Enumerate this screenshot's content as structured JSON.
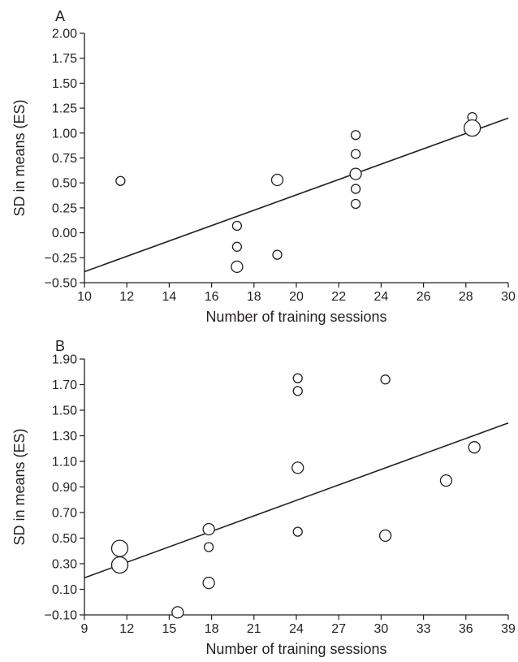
{
  "chart_data": [
    {
      "type": "scatter",
      "panel_label": "A",
      "xlabel": "Number of training sessions",
      "ylabel": "SD in means (ES)",
      "xlim": [
        10,
        30
      ],
      "ylim": [
        -0.5,
        2.0
      ],
      "xticks": [
        "10",
        "12",
        "14",
        "16",
        "18",
        "20",
        "22",
        "24",
        "26",
        "28",
        "30"
      ],
      "yticks": [
        "−0.50",
        "−0.25",
        "0.00",
        "0.25",
        "0.50",
        "0.75",
        "1.00",
        "1.25",
        "1.50",
        "1.75",
        "2.00"
      ],
      "points": [
        {
          "x": 11.7,
          "y": 0.52,
          "size": "small"
        },
        {
          "x": 17.2,
          "y": 0.07,
          "size": "small"
        },
        {
          "x": 17.2,
          "y": -0.14,
          "size": "small"
        },
        {
          "x": 17.2,
          "y": -0.34,
          "size": "medium"
        },
        {
          "x": 19.1,
          "y": 0.53,
          "size": "medium"
        },
        {
          "x": 19.1,
          "y": -0.22,
          "size": "small"
        },
        {
          "x": 22.8,
          "y": 0.98,
          "size": "small"
        },
        {
          "x": 22.8,
          "y": 0.79,
          "size": "small"
        },
        {
          "x": 22.8,
          "y": 0.59,
          "size": "medium"
        },
        {
          "x": 22.8,
          "y": 0.44,
          "size": "small"
        },
        {
          "x": 22.8,
          "y": 0.29,
          "size": "small"
        },
        {
          "x": 28.3,
          "y": 1.16,
          "size": "small"
        },
        {
          "x": 28.3,
          "y": 1.05,
          "size": "large"
        }
      ],
      "trendline": {
        "x": [
          10,
          30
        ],
        "y": [
          -0.39,
          1.15
        ]
      },
      "grid": false,
      "legend": "none"
    },
    {
      "type": "scatter",
      "panel_label": "B",
      "xlabel": "Number of training sessions",
      "ylabel": "SD in means (ES)",
      "xlim": [
        9,
        39
      ],
      "ylim": [
        -0.1,
        1.9
      ],
      "xticks": [
        "9",
        "12",
        "15",
        "18",
        "21",
        "24",
        "27",
        "30",
        "33",
        "36",
        "39"
      ],
      "yticks": [
        "−0.10",
        "0.10",
        "0.30",
        "0.50",
        "0.70",
        "0.90",
        "1.10",
        "1.30",
        "1.50",
        "1.70",
        "1.90"
      ],
      "points": [
        {
          "x": 11.5,
          "y": 0.42,
          "size": "large"
        },
        {
          "x": 11.5,
          "y": 0.29,
          "size": "large"
        },
        {
          "x": 15.6,
          "y": -0.08,
          "size": "medium"
        },
        {
          "x": 17.8,
          "y": 0.57,
          "size": "medium"
        },
        {
          "x": 17.8,
          "y": 0.43,
          "size": "small"
        },
        {
          "x": 17.8,
          "y": 0.15,
          "size": "medium"
        },
        {
          "x": 24.1,
          "y": 1.75,
          "size": "small"
        },
        {
          "x": 24.1,
          "y": 1.65,
          "size": "small"
        },
        {
          "x": 24.1,
          "y": 1.05,
          "size": "medium"
        },
        {
          "x": 24.1,
          "y": 0.55,
          "size": "small"
        },
        {
          "x": 30.3,
          "y": 1.74,
          "size": "small"
        },
        {
          "x": 30.3,
          "y": 0.52,
          "size": "medium"
        },
        {
          "x": 34.6,
          "y": 0.95,
          "size": "medium"
        },
        {
          "x": 36.6,
          "y": 1.21,
          "size": "medium"
        }
      ],
      "trendline": {
        "x": [
          9,
          39
        ],
        "y": [
          0.19,
          1.4
        ]
      },
      "grid": false,
      "legend": "none"
    }
  ]
}
